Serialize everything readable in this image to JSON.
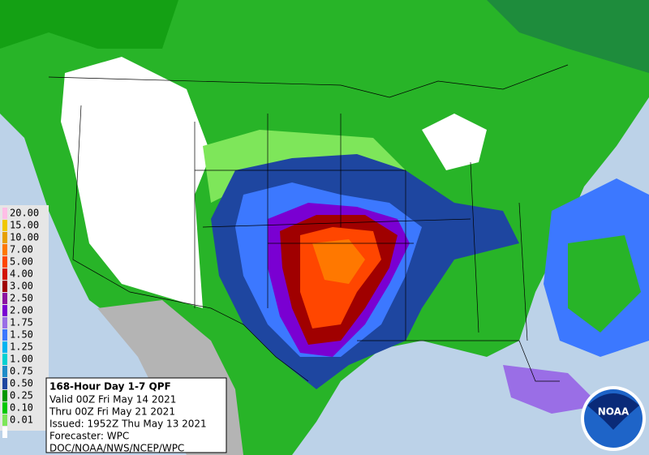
{
  "legend": {
    "entries": [
      {
        "label": "20.00",
        "color": "#ffbee6"
      },
      {
        "label": "15.00",
        "color": "#f0c800"
      },
      {
        "label": "10.00",
        "color": "#e6a000"
      },
      {
        "label": "7.00",
        "color": "#ff7800"
      },
      {
        "label": "5.00",
        "color": "#ff4600"
      },
      {
        "label": "4.00",
        "color": "#d21400"
      },
      {
        "label": "3.00",
        "color": "#a00000"
      },
      {
        "label": "2.50",
        "color": "#8c14a0"
      },
      {
        "label": "2.00",
        "color": "#7a00d2"
      },
      {
        "label": "1.75",
        "color": "#9a6ee6"
      },
      {
        "label": "1.50",
        "color": "#3c78ff"
      },
      {
        "label": "1.25",
        "color": "#00b4f0"
      },
      {
        "label": "1.00",
        "color": "#00d2d2"
      },
      {
        "label": "0.75",
        "color": "#1e8cc8"
      },
      {
        "label": "0.50",
        "color": "#1e46a0"
      },
      {
        "label": "0.25",
        "color": "#009600"
      },
      {
        "label": "0.10",
        "color": "#00c800"
      },
      {
        "label": "0.01",
        "color": "#7ee65a"
      }
    ]
  },
  "info": {
    "title": "168-Hour Day 1-7 QPF",
    "lines": [
      "Valid 00Z Fri May 14 2021",
      "Thru 00Z Fri May 21 2021",
      "Issued: 1952Z Thu May 13 2021",
      "Forecaster: WPC",
      "DOC/NOAA/NWS/NCEP/WPC"
    ]
  },
  "logo": {
    "text": "NOAA"
  }
}
